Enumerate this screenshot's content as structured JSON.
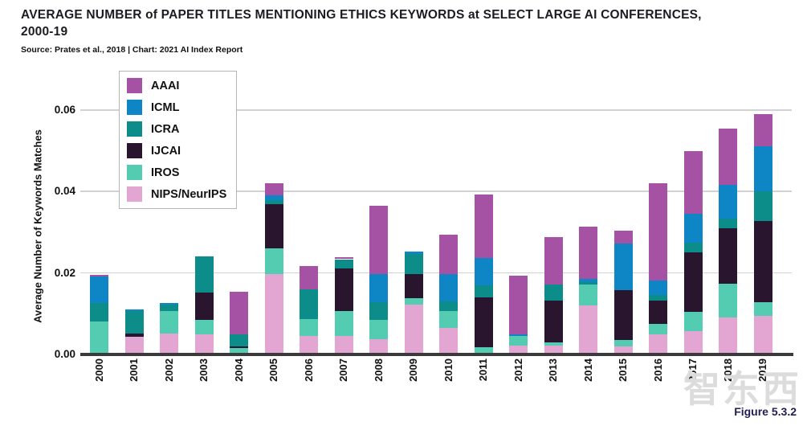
{
  "header": {
    "title_line1": "AVERAGE NUMBER of PAPER TITLES MENTIONING ETHICS KEYWORDS at SELECT LARGE AI CONFERENCES,",
    "title_line2": "2000-19",
    "source": "Source: Prates et al., 2018 | Chart: 2021 AI Index Report"
  },
  "footer": {
    "figure_label": "Figure 5.3.2",
    "watermark": "智东西"
  },
  "chart_data": {
    "type": "bar",
    "stacked": true,
    "title": "AVERAGE NUMBER of PAPER TITLES MENTIONING ETHICS KEYWORDS at SELECT LARGE AI CONFERENCES, 2000-19",
    "xlabel": "",
    "ylabel": "Average Number of Keywords Matches",
    "ylim": [
      0,
      0.065
    ],
    "yticks": [
      0,
      0.02,
      0.04,
      0.06
    ],
    "ytick_labels": [
      "0.00",
      "0.02",
      "0.04",
      "0.06"
    ],
    "grid": true,
    "legend_position": "top-left",
    "legend_order": [
      "AAAI",
      "ICML",
      "ICRA",
      "IJCAI",
      "IROS",
      "NIPS/NeurIPS"
    ],
    "stack_order": "bottom to top as listed in series",
    "categories": [
      "2000",
      "2001",
      "2002",
      "2003",
      "2004",
      "2005",
      "2006",
      "2007",
      "2008",
      "2009",
      "2010",
      "2011",
      "2012",
      "2013",
      "2014",
      "2015",
      "2016",
      "2017",
      "2018",
      "2019"
    ],
    "series": [
      {
        "name": "NIPS/NeurIPS",
        "color": "#E3A6D3",
        "values": [
          0.0,
          0.0044,
          0.0051,
          0.005,
          0.0,
          0.0198,
          0.0045,
          0.0046,
          0.0038,
          0.0123,
          0.0065,
          0.0004,
          0.0022,
          0.0022,
          0.012,
          0.002,
          0.005,
          0.0058,
          0.009,
          0.0094
        ]
      },
      {
        "name": "IROS",
        "color": "#53CCB1",
        "values": [
          0.008,
          0.0,
          0.0055,
          0.0035,
          0.0016,
          0.0062,
          0.0042,
          0.006,
          0.0046,
          0.0015,
          0.0041,
          0.0014,
          0.0023,
          0.0007,
          0.0051,
          0.0015,
          0.0025,
          0.0047,
          0.0083,
          0.0035
        ]
      },
      {
        "name": "IJCAI",
        "color": "#2A152F",
        "values": [
          0.0,
          0.0007,
          0.0,
          0.0068,
          0.0003,
          0.011,
          0.0,
          0.0105,
          0.0,
          0.0059,
          0.0,
          0.0122,
          0.0,
          0.0103,
          0.0,
          0.0123,
          0.0058,
          0.0145,
          0.0137,
          0.0199
        ]
      },
      {
        "name": "ICRA",
        "color": "#0D8D89",
        "values": [
          0.0047,
          0.0055,
          0.0017,
          0.0087,
          0.003,
          0.001,
          0.0073,
          0.0023,
          0.0044,
          0.0049,
          0.0025,
          0.003,
          0.0,
          0.0039,
          0.0007,
          0.0,
          0.0013,
          0.0025,
          0.0023,
          0.0072
        ]
      },
      {
        "name": "ICML",
        "color": "#0E86C6",
        "values": [
          0.0065,
          0.0005,
          0.0003,
          0.0,
          0.0,
          0.001,
          0.0,
          0.0,
          0.007,
          0.0006,
          0.0067,
          0.0066,
          0.0005,
          0.0,
          0.0007,
          0.0115,
          0.0035,
          0.007,
          0.0084,
          0.0112
        ]
      },
      {
        "name": "AAAI",
        "color": "#A552A5",
        "values": [
          0.0004,
          0.0,
          0.0,
          0.0,
          0.0106,
          0.003,
          0.0058,
          0.0004,
          0.0168,
          0.0,
          0.0096,
          0.0157,
          0.0143,
          0.0117,
          0.0128,
          0.0031,
          0.024,
          0.0155,
          0.0138,
          0.0079
        ]
      }
    ],
    "colors": {
      "gridline": "#d2d2d2",
      "baseline": "#3a3a3a",
      "title": "#1b1b22",
      "figure_label": "#201d52",
      "watermark": "#dcdcdc"
    }
  }
}
